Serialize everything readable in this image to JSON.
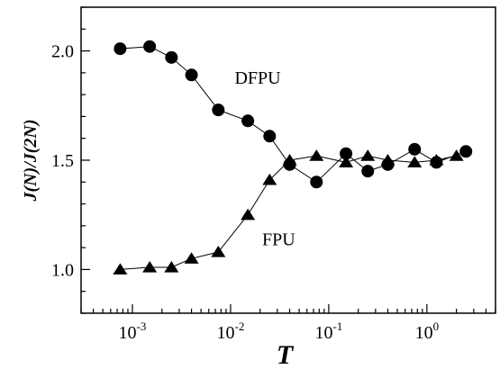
{
  "chart_data": {
    "type": "line",
    "xscale": "log",
    "xlim": [
      0.0003,
      5.0
    ],
    "ylim": [
      0.8,
      2.2
    ],
    "xlabel": "T",
    "ylabel": "J(N)/J(2N)",
    "grid": false,
    "x_ticks": [
      {
        "value": 0.001,
        "base": "10",
        "exp": "-3"
      },
      {
        "value": 0.01,
        "base": "10",
        "exp": "-2"
      },
      {
        "value": 0.1,
        "base": "10",
        "exp": "-1"
      },
      {
        "value": 1.0,
        "base": "10",
        "exp": "0"
      }
    ],
    "y_ticks": [
      {
        "value": 1.0,
        "label": "1.0"
      },
      {
        "value": 1.5,
        "label": "1.5"
      },
      {
        "value": 2.0,
        "label": "2.0"
      }
    ],
    "y_minor_step": 0.1,
    "series": [
      {
        "name": "DFPU",
        "marker": "circle",
        "label_at": {
          "x": 0.011,
          "y": 1.85
        },
        "x": [
          0.00075,
          0.0015,
          0.0025,
          0.004,
          0.0075,
          0.015,
          0.025,
          0.04,
          0.075,
          0.15,
          0.25,
          0.4,
          0.75,
          1.25,
          2.5
        ],
        "y": [
          2.01,
          2.02,
          1.97,
          1.89,
          1.73,
          1.68,
          1.61,
          1.48,
          1.4,
          1.53,
          1.45,
          1.48,
          1.55,
          1.49,
          1.54
        ]
      },
      {
        "name": "FPU",
        "marker": "triangle",
        "label_at": {
          "x": 0.021,
          "y": 1.11
        },
        "x": [
          0.00075,
          0.0015,
          0.0025,
          0.004,
          0.0075,
          0.015,
          0.025,
          0.04,
          0.075,
          0.15,
          0.25,
          0.4,
          0.75,
          1.25,
          2.0
        ],
        "y": [
          1.0,
          1.01,
          1.01,
          1.05,
          1.08,
          1.25,
          1.41,
          1.5,
          1.52,
          1.49,
          1.52,
          1.5,
          1.49,
          1.5,
          1.52
        ]
      }
    ]
  }
}
